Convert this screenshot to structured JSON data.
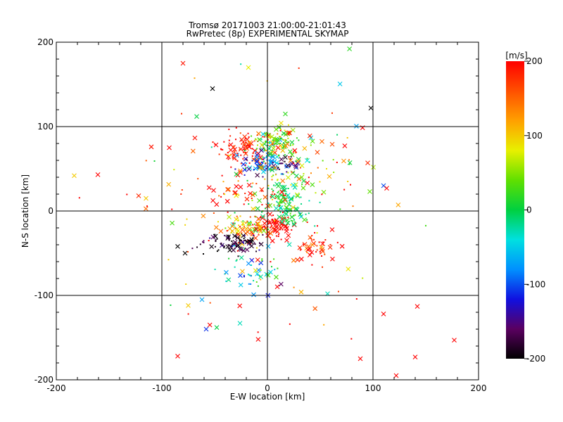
{
  "chart_data": {
    "type": "scatter",
    "title": "Tromsø 20171003 21:00:00-21:01:43",
    "subtitle": "RwPretec (8p) EXPERIMENTAL SKYMAP",
    "xlabel": "E-W location [km]",
    "ylabel": "N-S location [km]",
    "xlim": [
      -200,
      200
    ],
    "ylim": [
      -200,
      200
    ],
    "x_ticks": [
      "-200",
      "-100",
      "0",
      "100",
      "200"
    ],
    "y_ticks": [
      "-200",
      "-100",
      "0",
      "100",
      "200"
    ],
    "grid": true,
    "colorbar": {
      "label": "[m/s]",
      "range": [
        -200,
        200
      ],
      "ticks": [
        "200",
        "100",
        "0",
        "-100",
        "-200"
      ],
      "colormap": [
        "#000000",
        "#5a0060",
        "#1010e0",
        "#0090ff",
        "#00e0e0",
        "#00d040",
        "#60e000",
        "#e8f000",
        "#ffa000",
        "#ff5000",
        "#ff0000"
      ]
    },
    "clusters": [
      {
        "x": -20,
        "y": 75,
        "sx": 14,
        "sy": 10,
        "n": 110,
        "v": 190,
        "vs": 25
      },
      {
        "x": 5,
        "y": 78,
        "sx": 12,
        "sy": 8,
        "n": 70,
        "v": 20,
        "vs": 40
      },
      {
        "x": 10,
        "y": 85,
        "sx": 10,
        "sy": 6,
        "n": 40,
        "v": 60,
        "vs": 40
      },
      {
        "x": -5,
        "y": 55,
        "sx": 10,
        "sy": 6,
        "n": 80,
        "v": -100,
        "vs": 40
      },
      {
        "x": 18,
        "y": 55,
        "sx": 8,
        "sy": 5,
        "n": 25,
        "v": -160,
        "vs": 30
      },
      {
        "x": 15,
        "y": 18,
        "sx": 8,
        "sy": 12,
        "n": 60,
        "v": 0,
        "vs": 20
      },
      {
        "x": 5,
        "y": -18,
        "sx": 10,
        "sy": 6,
        "n": 70,
        "v": 200,
        "vs": 10
      },
      {
        "x": -20,
        "y": -22,
        "sx": 12,
        "sy": 7,
        "n": 80,
        "v": 100,
        "vs": 60
      },
      {
        "x": 20,
        "y": -5,
        "sx": 12,
        "sy": 8,
        "n": 50,
        "v": 0,
        "vs": 30
      },
      {
        "x": -30,
        "y": -38,
        "sx": 14,
        "sy": 6,
        "n": 90,
        "v": -185,
        "vs": 25
      },
      {
        "x": -15,
        "y": -70,
        "sx": 14,
        "sy": 12,
        "n": 50,
        "v": -40,
        "vs": 60
      },
      {
        "x": 45,
        "y": -45,
        "sx": 10,
        "sy": 10,
        "n": 40,
        "v": 190,
        "vs": 30
      },
      {
        "x": 10,
        "y": 40,
        "sx": 20,
        "sy": 30,
        "n": 80,
        "v": 80,
        "vs": 90
      },
      {
        "x": -40,
        "y": 20,
        "sx": 25,
        "sy": 15,
        "n": 40,
        "v": 150,
        "vs": 80
      },
      {
        "x": 40,
        "y": 60,
        "sx": 30,
        "sy": 30,
        "n": 50,
        "v": 100,
        "vs": 90
      },
      {
        "x": 0,
        "y": 0,
        "sx": 70,
        "sy": 80,
        "n": 90,
        "v": 150,
        "vs": 100
      }
    ],
    "marked_points": [
      {
        "x": -80,
        "y": 175,
        "v": 190
      },
      {
        "x": -18,
        "y": 170,
        "v": 80
      },
      {
        "x": -52,
        "y": 145,
        "v": -200
      },
      {
        "x": -67,
        "y": 112,
        "v": 0
      },
      {
        "x": 17,
        "y": 115,
        "v": 20
      },
      {
        "x": 98,
        "y": 122,
        "v": -200
      },
      {
        "x": -93,
        "y": 75,
        "v": 200
      },
      {
        "x": -110,
        "y": 76,
        "v": 190
      },
      {
        "x": -122,
        "y": 18,
        "v": 180
      },
      {
        "x": -115,
        "y": 15,
        "v": 100
      },
      {
        "x": 95,
        "y": 57,
        "v": 180
      },
      {
        "x": 110,
        "y": 30,
        "v": -100
      },
      {
        "x": 97,
        "y": 23,
        "v": 40
      },
      {
        "x": 113,
        "y": 27,
        "v": 200
      },
      {
        "x": -62,
        "y": -105,
        "v": -70
      },
      {
        "x": -75,
        "y": -112,
        "v": 100
      },
      {
        "x": -58,
        "y": -140,
        "v": -110
      },
      {
        "x": -48,
        "y": -138,
        "v": 0
      },
      {
        "x": -26,
        "y": -133,
        "v": -30
      },
      {
        "x": 32,
        "y": -96,
        "v": 110
      },
      {
        "x": 57,
        "y": -98,
        "v": -30
      },
      {
        "x": 110,
        "y": -122,
        "v": 200
      },
      {
        "x": 142,
        "y": -113,
        "v": 200
      },
      {
        "x": 88,
        "y": -175,
        "v": 200
      },
      {
        "x": 177,
        "y": -153,
        "v": 200
      },
      {
        "x": 140,
        "y": -173,
        "v": 200
      },
      {
        "x": 122,
        "y": -195,
        "v": 200
      },
      {
        "x": -85,
        "y": -172,
        "v": 200
      },
      {
        "x": -85,
        "y": -42,
        "v": -200
      },
      {
        "x": -78,
        "y": -50,
        "v": -200
      }
    ]
  }
}
